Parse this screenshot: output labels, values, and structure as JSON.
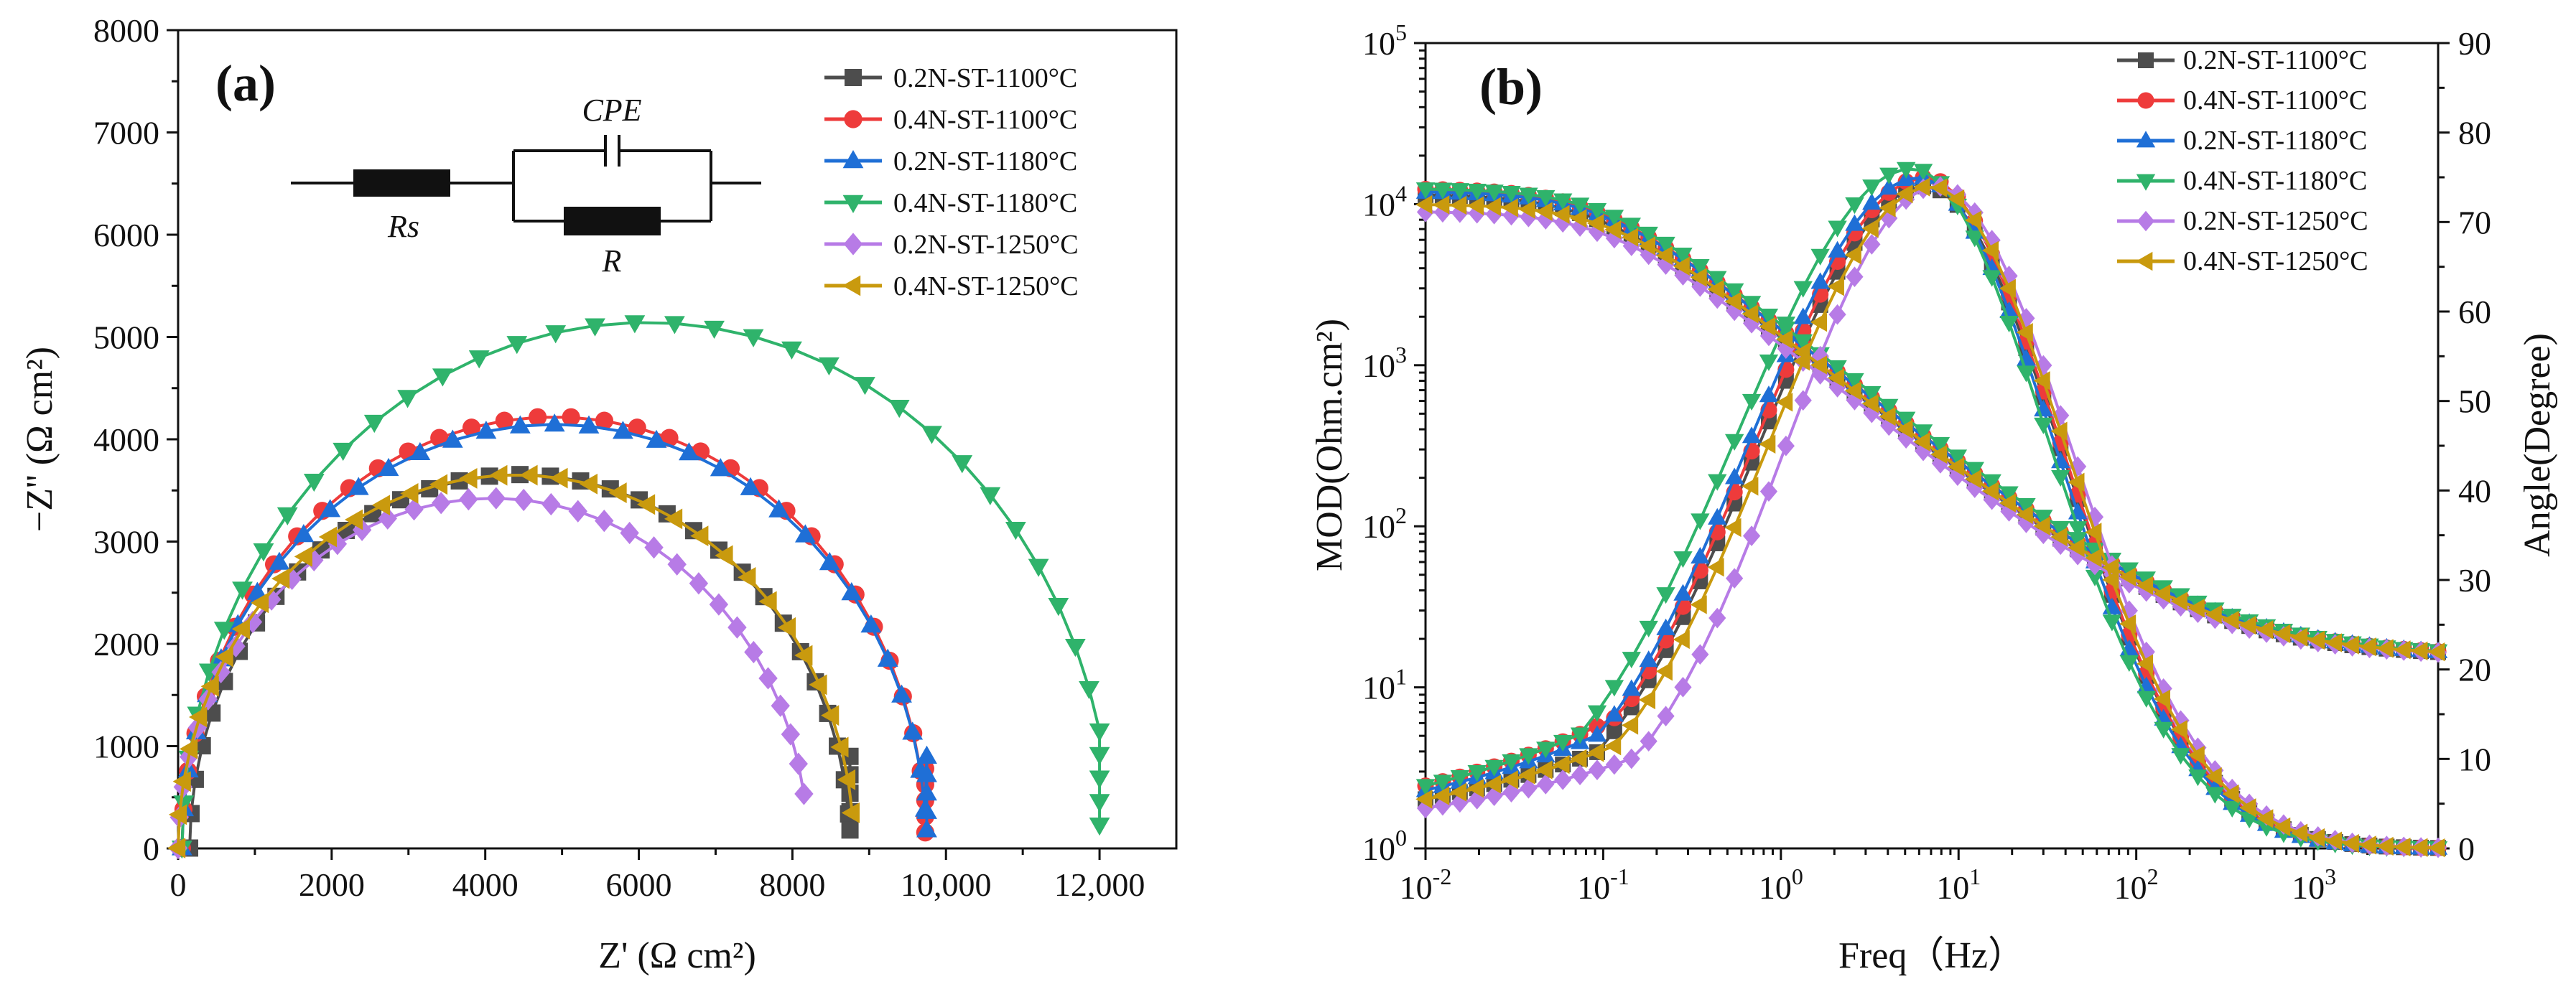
{
  "chart_data": [
    {
      "type": "scatter",
      "panel_label": "(a)",
      "xlabel": "Z' (Ω cm²)",
      "ylabel": "−Z'' (Ω cm²)",
      "xlim": [
        0,
        13000
      ],
      "ylim": [
        0,
        8000
      ],
      "xticks": [
        0,
        2000,
        4000,
        6000,
        8000,
        10000,
        12000
      ],
      "xtick_labels": [
        "0",
        "2000",
        "4000",
        "6000",
        "8000",
        "10,000",
        "12,000"
      ],
      "yticks": [
        0,
        1000,
        2000,
        3000,
        4000,
        5000,
        6000,
        7000,
        8000
      ],
      "ytick_labels": [
        "0",
        "1000",
        "2000",
        "3000",
        "4000",
        "5000",
        "6000",
        "7000",
        "8000"
      ],
      "legend_position": "top-right",
      "circuit": {
        "rs_label": "Rs",
        "cpe_label": "CPE",
        "r_label": "R"
      },
      "series": [
        {
          "name": "0.2N-ST-1100°C",
          "color": "#4d4d4d",
          "marker": "square",
          "center_x": 4450,
          "radius": 4300,
          "depression": 0.85,
          "end_x": 8750,
          "end_y": 900
        },
        {
          "name": "0.4N-ST-1100°C",
          "color": "#ee3b3b",
          "marker": "circle",
          "center_x": 4900,
          "radius": 4850,
          "depression": 0.87,
          "end_x": 9730,
          "end_y": 780
        },
        {
          "name": "0.2N-ST-1180°C",
          "color": "#1f6fd6",
          "marker": "triangle-up",
          "center_x": 4900,
          "radius": 4850,
          "depression": 0.855,
          "end_x": 9750,
          "end_y": 900
        },
        {
          "name": "0.4N-ST-1180°C",
          "color": "#2fb36b",
          "marker": "triangle-down",
          "center_x": 6100,
          "radius": 6050,
          "depression": 0.85,
          "end_x": 12000,
          "end_y": 1150
        },
        {
          "name": "0.2N-ST-1250°C",
          "color": "#b77be6",
          "marker": "diamond",
          "center_x": 4100,
          "radius": 4100,
          "depression": 0.835,
          "end_x": 8150,
          "end_y": 0
        },
        {
          "name": "0.4N-ST-1250°C",
          "color": "#c99a0e",
          "marker": "triangle-left",
          "center_x": 4400,
          "radius": 4400,
          "depression": 0.83,
          "end_x": 8780,
          "end_y": 0
        }
      ]
    },
    {
      "type": "line",
      "panel_label": "(b)",
      "xlabel": "Freq（Hz）",
      "ylabel": "MOD(Ohm.cm²)",
      "y2label": "Angle(Degree)",
      "xscale": "log",
      "yscale": "log",
      "xlim": [
        0.01,
        5000
      ],
      "ylim": [
        1,
        100000
      ],
      "y2lim": [
        0,
        90
      ],
      "xticks": [
        0.01,
        0.1,
        1,
        10,
        100,
        1000
      ],
      "xtick_exponents": [
        "-2",
        "-1",
        "0",
        "1",
        "2",
        "3"
      ],
      "yticks": [
        1,
        10,
        100,
        1000,
        10000,
        100000
      ],
      "ytick_exponents": [
        "0",
        "1",
        "2",
        "3",
        "4",
        "5"
      ],
      "tick_base": "10",
      "y2ticks": [
        0,
        10,
        20,
        30,
        40,
        50,
        60,
        70,
        80,
        90
      ],
      "y2tick_labels": [
        "0",
        "10",
        "20",
        "30",
        "40",
        "50",
        "60",
        "70",
        "80",
        "90"
      ],
      "legend_position": "top-right",
      "series": [
        {
          "name": "0.2N-ST-1100°C",
          "color": "#4d4d4d",
          "marker": "square",
          "mod_low": 11500,
          "rs": 15.5,
          "ang_peak": 74,
          "peak_freq": 6.5,
          "ang_left_log": -0.02,
          "ang_left_val": 5.5
        },
        {
          "name": "0.4N-ST-1100°C",
          "color": "#ee3b3b",
          "marker": "circle",
          "mod_low": 12500,
          "rs": 15.5,
          "ang_peak": 75,
          "peak_freq": 6.5,
          "ang_left_log": 0,
          "ang_left_val": 7
        },
        {
          "name": "0.2N-ST-1180°C",
          "color": "#1f6fd6",
          "marker": "triangle-up",
          "mod_low": 12000,
          "rs": 15.5,
          "ang_peak": 75,
          "peak_freq": 6.0,
          "ang_left_log": 0,
          "ang_left_val": 6.5
        },
        {
          "name": "0.4N-ST-1180°C",
          "color": "#2fb36b",
          "marker": "triangle-down",
          "mod_low": 12500,
          "rs": 15.5,
          "ang_peak": 76,
          "peak_freq": 5.5,
          "ang_left_log": 0.05,
          "ang_left_val": 7
        },
        {
          "name": "0.2N-ST-1250°C",
          "color": "#b77be6",
          "marker": "diamond",
          "mod_low": 9000,
          "rs": 15.5,
          "ang_peak": 74,
          "peak_freq": 7.5,
          "ang_left_log": -0.15,
          "ang_left_val": 4.5
        },
        {
          "name": "0.4N-ST-1250°C",
          "color": "#c99a0e",
          "marker": "triangle-left",
          "mod_low": 10000,
          "rs": 15.5,
          "ang_peak": 74,
          "peak_freq": 7.0,
          "ang_left_log": -0.05,
          "ang_left_val": 5.5
        }
      ]
    }
  ]
}
